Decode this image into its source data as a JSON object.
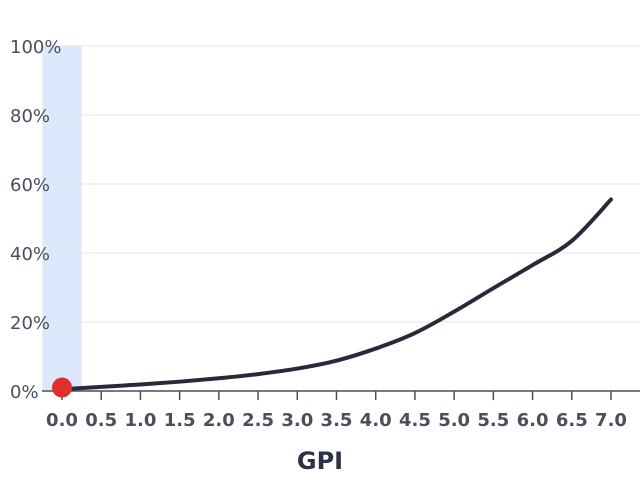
{
  "chart_data": {
    "type": "line",
    "xlabel": "GPI",
    "ylabel": "",
    "xlim": [
      0.0,
      7.0
    ],
    "ylim": [
      0,
      100
    ],
    "x_ticks": [
      "0.0",
      "0.5",
      "1.0",
      "1.5",
      "2.0",
      "2.5",
      "3.0",
      "3.5",
      "4.0",
      "4.5",
      "5.0",
      "5.5",
      "6.0",
      "6.5",
      "7.0"
    ],
    "y_ticks": [
      "0%",
      "20%",
      "40%",
      "60%",
      "80%",
      "100%"
    ],
    "grid": true,
    "highlight_band": {
      "x_start": -0.25,
      "x_end": 0.25
    },
    "marker": {
      "x": 0.0,
      "y": 1
    },
    "series": [
      {
        "x": [
          0.0,
          0.5,
          1.0,
          1.5,
          2.0,
          2.5,
          3.0,
          3.5,
          4.0,
          4.5,
          5.0,
          5.5,
          6.0,
          6.5,
          7.0
        ],
        "y": [
          0.5,
          1.2,
          1.9,
          2.7,
          3.7,
          4.9,
          6.5,
          8.8,
          12.3,
          16.8,
          23.0,
          29.8,
          36.5,
          43.5,
          55.5
        ]
      }
    ],
    "colors": {
      "line": "#272a38",
      "marker": "#e0302e",
      "band": "#dce8fb",
      "grid": "#e6e6e6",
      "axis": "#4a4f5e"
    }
  }
}
